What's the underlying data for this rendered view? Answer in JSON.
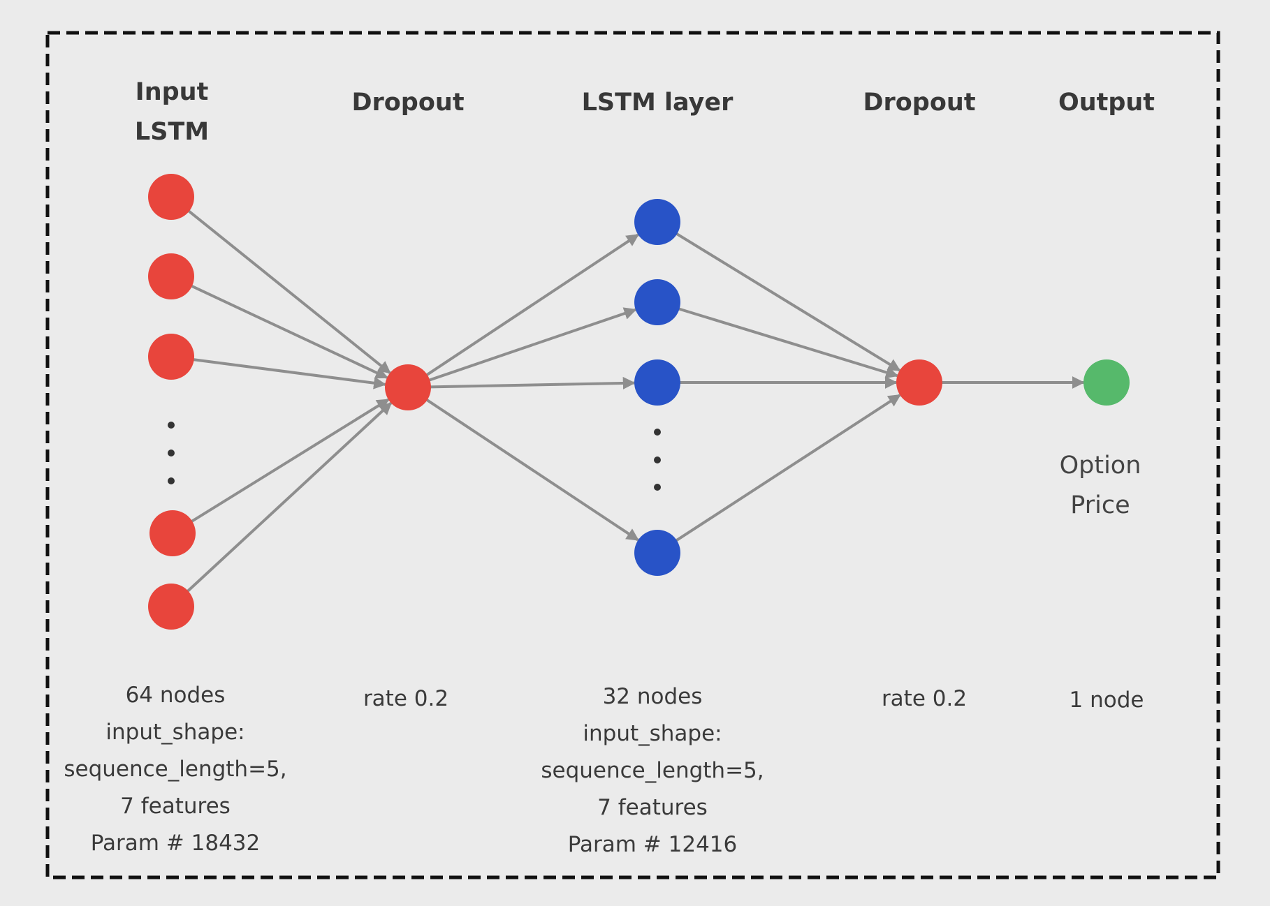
{
  "colors": {
    "background": "#ebebeb",
    "frame": "#111111",
    "edge": "#8e8e8e",
    "dropout_node": "#e8453c",
    "lstm_node": "#2853c7",
    "output_node": "#56b96b"
  },
  "layers": [
    {
      "id": "input_lstm",
      "title": [
        "Input",
        "LSTM"
      ],
      "node_color": "#e8453c",
      "desc": [
        "64 nodes",
        "input_shape:",
        "sequence_length=5,",
        "7 features",
        "Param # 18432"
      ]
    },
    {
      "id": "dropout_1",
      "title": [
        "Dropout"
      ],
      "node_color": "#e8453c",
      "desc": [
        "rate 0.2"
      ]
    },
    {
      "id": "lstm_layer",
      "title": [
        "LSTM layer"
      ],
      "node_color": "#2853c7",
      "desc": [
        "32 nodes",
        "input_shape:",
        "sequence_length=5,",
        "7 features",
        "Param # 12416"
      ]
    },
    {
      "id": "dropout_2",
      "title": [
        "Dropout"
      ],
      "node_color": "#e8453c",
      "desc": [
        "rate 0.2"
      ]
    },
    {
      "id": "output",
      "title": [
        "Output"
      ],
      "node_color": "#56b96b",
      "node_label": [
        "Option",
        "Price"
      ],
      "desc": [
        "1 node"
      ]
    }
  ]
}
